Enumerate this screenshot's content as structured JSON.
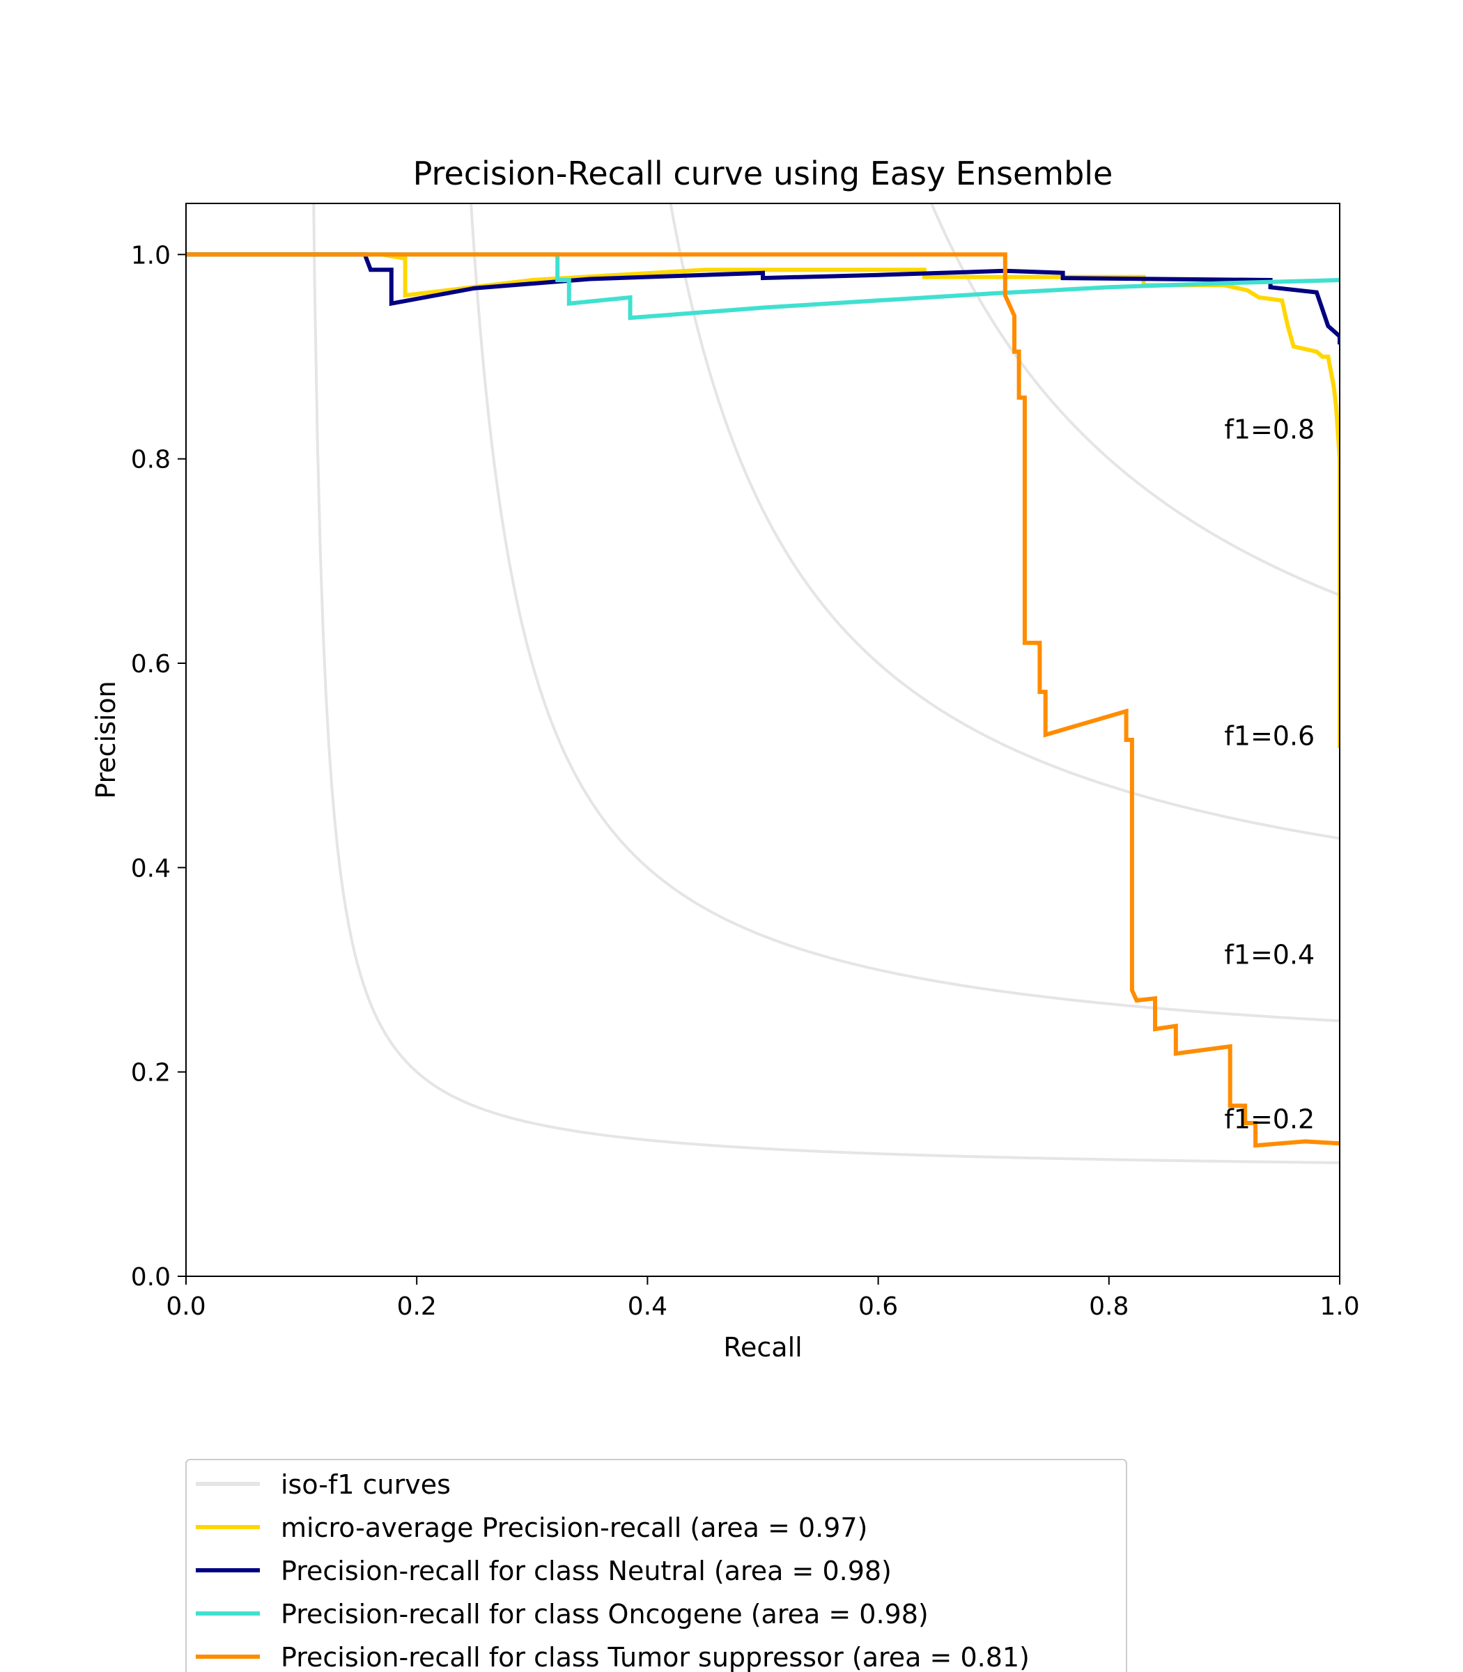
{
  "chart_data": {
    "type": "line",
    "title": "Precision-Recall curve using Easy Ensemble",
    "xlabel": "Recall",
    "ylabel": "Precision",
    "xlim": [
      0.0,
      1.0
    ],
    "ylim": [
      0.0,
      1.05
    ],
    "x_ticks": [
      "0.0",
      "0.2",
      "0.4",
      "0.6",
      "0.8",
      "1.0"
    ],
    "y_ticks": [
      "0.0",
      "0.2",
      "0.4",
      "0.6",
      "0.8",
      "1.0"
    ],
    "grid": false,
    "legend_position": "below",
    "iso_f1": {
      "legend_label": "iso-f1 curves",
      "color": "#e5e5e5",
      "levels": [
        0.2,
        0.4,
        0.6,
        0.8
      ],
      "labels": [
        "f1=0.2",
        "f1=0.4",
        "f1=0.6",
        "f1=0.8"
      ]
    },
    "series": [
      {
        "name": "micro-average Precision-recall (area = 0.97)",
        "color": "#ffd700",
        "points": [
          [
            0.0,
            1.0
          ],
          [
            0.17,
            1.0
          ],
          [
            0.19,
            0.996
          ],
          [
            0.19,
            0.96
          ],
          [
            0.3,
            0.975
          ],
          [
            0.45,
            0.985
          ],
          [
            0.64,
            0.985
          ],
          [
            0.64,
            0.978
          ],
          [
            0.83,
            0.978
          ],
          [
            0.83,
            0.97
          ],
          [
            0.9,
            0.97
          ],
          [
            0.92,
            0.965
          ],
          [
            0.93,
            0.958
          ],
          [
            0.95,
            0.955
          ],
          [
            0.955,
            0.93
          ],
          [
            0.96,
            0.91
          ],
          [
            0.98,
            0.905
          ],
          [
            0.985,
            0.9
          ],
          [
            0.99,
            0.9
          ],
          [
            0.995,
            0.87
          ],
          [
            0.997,
            0.85
          ],
          [
            1.0,
            0.8
          ],
          [
            1.0,
            0.7
          ],
          [
            1.0,
            0.66
          ],
          [
            1.0,
            0.6
          ],
          [
            1.0,
            0.56
          ],
          [
            1.0,
            0.517
          ]
        ]
      },
      {
        "name": "Precision-recall for class Neutral (area = 0.98)",
        "color": "#000080",
        "points": [
          [
            0.0,
            1.0
          ],
          [
            0.155,
            1.0
          ],
          [
            0.16,
            0.985
          ],
          [
            0.178,
            0.985
          ],
          [
            0.178,
            0.952
          ],
          [
            0.25,
            0.967
          ],
          [
            0.35,
            0.976
          ],
          [
            0.5,
            0.982
          ],
          [
            0.5,
            0.977
          ],
          [
            0.6,
            0.98
          ],
          [
            0.71,
            0.984
          ],
          [
            0.76,
            0.982
          ],
          [
            0.76,
            0.977
          ],
          [
            0.94,
            0.975
          ],
          [
            0.94,
            0.968
          ],
          [
            0.98,
            0.963
          ],
          [
            0.99,
            0.93
          ],
          [
            1.0,
            0.92
          ],
          [
            1.0,
            0.912
          ]
        ]
      },
      {
        "name": "Precision-recall for class Oncogene (area = 0.98)",
        "color": "#40e0d0",
        "points": [
          [
            0.0,
            1.0
          ],
          [
            0.322,
            1.0
          ],
          [
            0.322,
            0.975
          ],
          [
            0.332,
            0.975
          ],
          [
            0.332,
            0.952
          ],
          [
            0.385,
            0.958
          ],
          [
            0.385,
            0.938
          ],
          [
            0.5,
            0.948
          ],
          [
            0.6,
            0.955
          ],
          [
            0.7,
            0.962
          ],
          [
            0.8,
            0.968
          ],
          [
            0.9,
            0.972
          ],
          [
            1.0,
            0.975
          ]
        ]
      },
      {
        "name": "Precision-recall for class Tumor suppressor (area = 0.81)",
        "color": "#ff8c00",
        "points": [
          [
            0.0,
            1.0
          ],
          [
            0.71,
            1.0
          ],
          [
            0.71,
            0.96
          ],
          [
            0.718,
            0.94
          ],
          [
            0.718,
            0.905
          ],
          [
            0.722,
            0.905
          ],
          [
            0.722,
            0.86
          ],
          [
            0.727,
            0.86
          ],
          [
            0.727,
            0.62
          ],
          [
            0.74,
            0.62
          ],
          [
            0.74,
            0.572
          ],
          [
            0.745,
            0.572
          ],
          [
            0.745,
            0.53
          ],
          [
            0.815,
            0.553
          ],
          [
            0.815,
            0.525
          ],
          [
            0.82,
            0.525
          ],
          [
            0.82,
            0.28
          ],
          [
            0.824,
            0.27
          ],
          [
            0.84,
            0.272
          ],
          [
            0.84,
            0.242
          ],
          [
            0.858,
            0.245
          ],
          [
            0.858,
            0.218
          ],
          [
            0.905,
            0.225
          ],
          [
            0.905,
            0.167
          ],
          [
            0.918,
            0.167
          ],
          [
            0.918,
            0.15
          ],
          [
            0.927,
            0.15
          ],
          [
            0.927,
            0.128
          ],
          [
            0.97,
            0.132
          ],
          [
            1.0,
            0.13
          ]
        ]
      }
    ]
  }
}
